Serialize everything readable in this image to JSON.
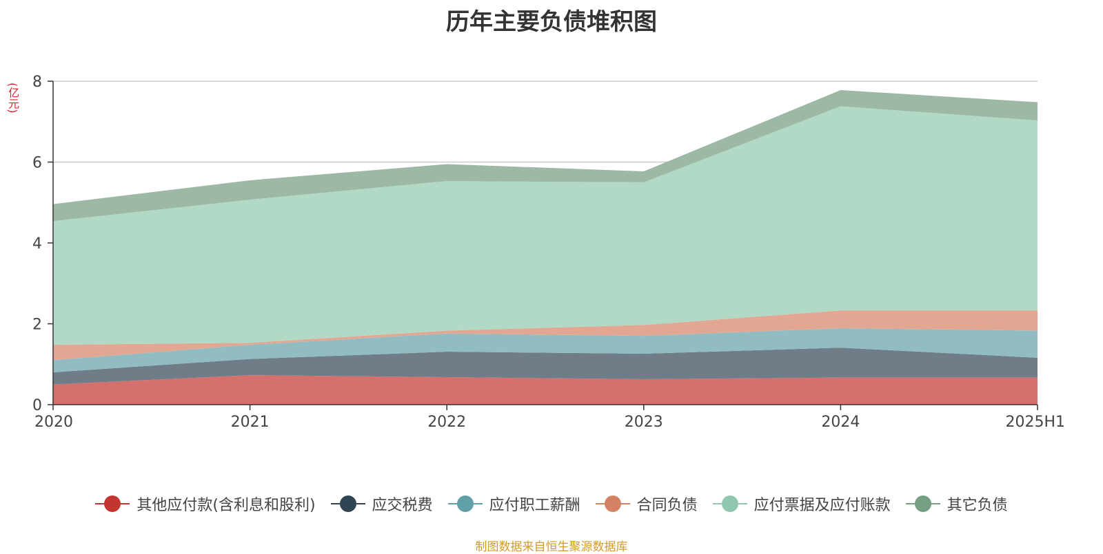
{
  "chart_data": {
    "type": "area",
    "stacked": true,
    "title": "历年主要负债堆积图",
    "unit_label": "(亿元)",
    "categories": [
      "2020",
      "2021",
      "2022",
      "2023",
      "2024",
      "2025H1"
    ],
    "ylim": [
      0,
      8
    ],
    "yticks": [
      "0",
      "2",
      "4",
      "6",
      "8"
    ],
    "grid": true,
    "legend_position": "bottom",
    "series": [
      {
        "name": "其他应付款(含利息和股利)",
        "color": "#c23531",
        "fill": "#d4706d",
        "values": [
          0.5,
          0.73,
          0.68,
          0.63,
          0.67,
          0.67
        ]
      },
      {
        "name": "应交税费",
        "color": "#2f4554",
        "fill": "#6e7d87",
        "values": [
          0.3,
          0.4,
          0.63,
          0.63,
          0.74,
          0.49
        ]
      },
      {
        "name": "应付职工薪酬",
        "color": "#61a0a8",
        "fill": "#90bcc2",
        "values": [
          0.3,
          0.35,
          0.45,
          0.44,
          0.48,
          0.67
        ]
      },
      {
        "name": "合同负债",
        "color": "#d48265",
        "fill": "#e1a793",
        "values": [
          0.38,
          0.05,
          0.07,
          0.27,
          0.44,
          0.5
        ]
      },
      {
        "name": "应付票据及应付账款",
        "color": "#91c7ae",
        "fill": "#b2d8c6",
        "values": [
          3.06,
          3.54,
          3.7,
          3.53,
          5.05,
          4.7
        ]
      },
      {
        "name": "其它负债",
        "color": "#749f83",
        "fill": "#9db8a5",
        "values": [
          0.42,
          0.48,
          0.42,
          0.27,
          0.4,
          0.45
        ]
      }
    ],
    "source_note": "制图数据来自恒生聚源数据库"
  }
}
